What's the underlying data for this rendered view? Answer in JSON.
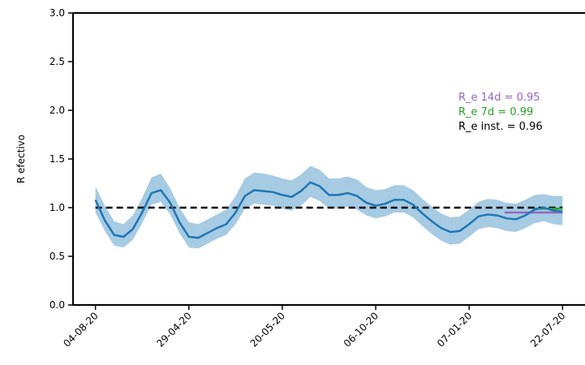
{
  "chart_data": {
    "type": "line",
    "ylabel": "R efectivo",
    "x": [
      0,
      5,
      10,
      15,
      20,
      25,
      30,
      35,
      40,
      45,
      50,
      55,
      60,
      65,
      70,
      75,
      80,
      85,
      90,
      95,
      100,
      105,
      110,
      115,
      120,
      125,
      130,
      135,
      140,
      145,
      150,
      155,
      160,
      165,
      170,
      175,
      180,
      185,
      190,
      195,
      200,
      205,
      210,
      215,
      220,
      225,
      230,
      235,
      240,
      245,
      250
    ],
    "series": [
      {
        "name": "R_e",
        "color": "#1f77b4",
        "values": [
          1.08,
          0.87,
          0.72,
          0.7,
          0.78,
          0.95,
          1.15,
          1.18,
          1.05,
          0.85,
          0.7,
          0.69,
          0.74,
          0.79,
          0.83,
          0.95,
          1.12,
          1.18,
          1.17,
          1.16,
          1.13,
          1.11,
          1.17,
          1.26,
          1.22,
          1.13,
          1.13,
          1.15,
          1.12,
          1.05,
          1.02,
          1.04,
          1.08,
          1.08,
          1.03,
          0.94,
          0.86,
          0.79,
          0.75,
          0.76,
          0.83,
          0.91,
          0.93,
          0.92,
          0.89,
          0.88,
          0.92,
          0.98,
          1.0,
          0.97,
          0.96
        ],
        "lower": [
          0.95,
          0.76,
          0.61,
          0.59,
          0.67,
          0.84,
          1.03,
          1.06,
          0.93,
          0.74,
          0.59,
          0.58,
          0.63,
          0.68,
          0.72,
          0.83,
          0.99,
          1.04,
          1.03,
          1.02,
          0.99,
          0.97,
          1.02,
          1.11,
          1.07,
          0.99,
          0.99,
          1.01,
          0.98,
          0.92,
          0.89,
          0.91,
          0.95,
          0.95,
          0.9,
          0.81,
          0.73,
          0.66,
          0.62,
          0.63,
          0.7,
          0.78,
          0.8,
          0.79,
          0.76,
          0.75,
          0.79,
          0.84,
          0.86,
          0.83,
          0.82
        ],
        "upper": [
          1.22,
          1.02,
          0.86,
          0.83,
          0.92,
          1.1,
          1.31,
          1.35,
          1.2,
          1.0,
          0.85,
          0.83,
          0.88,
          0.93,
          0.98,
          1.12,
          1.3,
          1.36,
          1.35,
          1.33,
          1.3,
          1.28,
          1.34,
          1.43,
          1.39,
          1.3,
          1.3,
          1.32,
          1.29,
          1.21,
          1.18,
          1.19,
          1.23,
          1.23,
          1.18,
          1.09,
          1.01,
          0.94,
          0.9,
          0.91,
          0.98,
          1.06,
          1.09,
          1.08,
          1.05,
          1.04,
          1.08,
          1.13,
          1.14,
          1.12,
          1.12
        ],
        "band_color": "#a6cbe3"
      }
    ],
    "reference_line": {
      "value": 1,
      "color": "#000000"
    },
    "segments": [
      {
        "label": "R_e 14d = 0.95",
        "value": 0.95,
        "x": [
          219,
          250
        ],
        "color": "#9467bd"
      },
      {
        "label": "R_e 7d = 0.99",
        "value": 0.99,
        "x": [
          235,
          250
        ],
        "color": "#2ca02c"
      }
    ],
    "annotations": [
      {
        "text": "R_e 14d = 0.95",
        "color": "#9467bd"
      },
      {
        "text": "R_e 7d = 0.99",
        "color": "#2ca02c"
      },
      {
        "text": "R_e inst. = 0.96",
        "color": "#000000"
      }
    ],
    "xlim": [
      -12,
      262
    ],
    "xticks": [
      {
        "value": 0,
        "label": "04-08-20"
      },
      {
        "value": 50,
        "label": "29-04-20"
      },
      {
        "value": 100,
        "label": "20-05-20"
      },
      {
        "value": 150,
        "label": "06-10-20"
      },
      {
        "value": 200,
        "label": "07-01-20"
      },
      {
        "value": 250,
        "label": "22-07-20"
      }
    ],
    "ylim": [
      0,
      3
    ],
    "yticks": [
      {
        "value": 0,
        "label": "0.0"
      },
      0.5,
      {
        "value": 1,
        "label": "1.0"
      },
      1.5,
      {
        "value": 2,
        "label": "2.0"
      },
      2.5,
      {
        "value": 3,
        "label": "3.0"
      }
    ]
  }
}
